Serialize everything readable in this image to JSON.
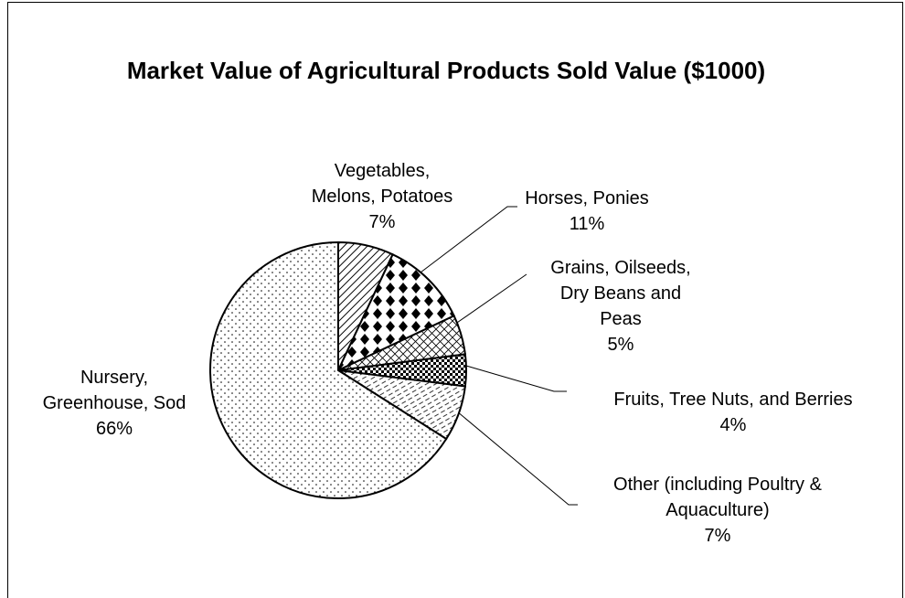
{
  "chart_data": {
    "type": "pie",
    "title": "Market Value of Agricultural Products Sold Value ($1000)",
    "categories": [
      "Vegetables, Melons, Potatoes",
      "Horses, Ponies",
      "Grains, Oilseeds, Dry Beans and Peas",
      "Fruits, Tree Nuts, and Berries",
      "Other (including Poultry & Aquaculture)",
      "Nursery, Greenhouse, Sod"
    ],
    "values": [
      7,
      11,
      5,
      4,
      7,
      66
    ],
    "value_labels": [
      "7%",
      "11%",
      "5%",
      "4%",
      "7%",
      "66%"
    ]
  }
}
